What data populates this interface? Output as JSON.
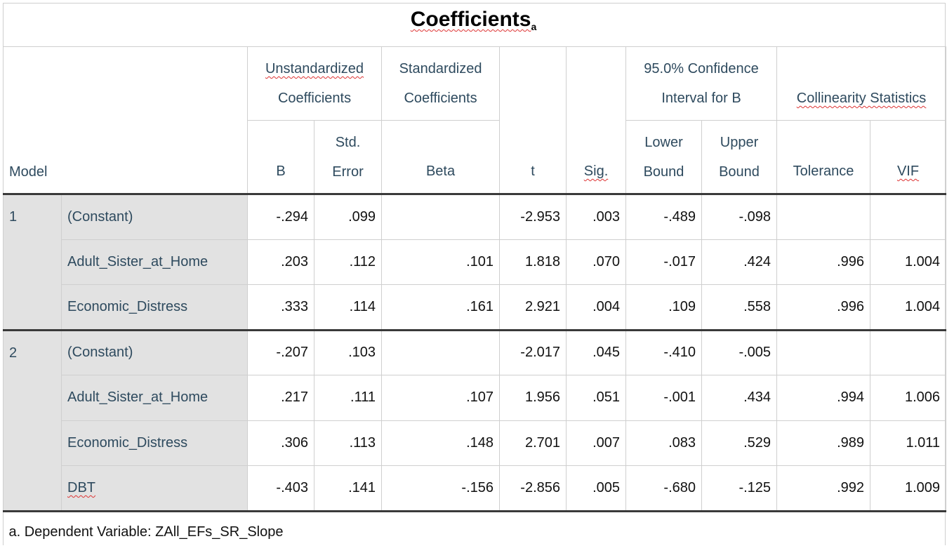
{
  "title": "Coefficients",
  "title_sup": "a",
  "headers": {
    "model": "Model",
    "unstd": "Unstandardized",
    "unstd2": "Coefficients",
    "std": "Standardized",
    "std2": "Coefficients",
    "t": "t",
    "sig": "Sig.",
    "ci": "95.0% Confidence",
    "ci2": "Interval for B",
    "coll": "Collinearity Statistics",
    "b": "B",
    "se1": "Std.",
    "se2": "Error",
    "beta": "Beta",
    "lb1": "Lower",
    "lb2": "Bound",
    "ub1": "Upper",
    "ub2": "Bound",
    "tol": "Tolerance",
    "vif": "VIF"
  },
  "models": [
    {
      "id": "1",
      "rows": [
        {
          "label": "(Constant)",
          "b": "-.294",
          "se": ".099",
          "beta": "",
          "t": "-2.953",
          "sig": ".003",
          "lb": "-.489",
          "ub": "-.098",
          "tol": "",
          "vif": ""
        },
        {
          "label": "Adult_Sister_at_Home",
          "b": ".203",
          "se": ".112",
          "beta": ".101",
          "t": "1.818",
          "sig": ".070",
          "lb": "-.017",
          "ub": ".424",
          "tol": ".996",
          "vif": "1.004"
        },
        {
          "label": "Economic_Distress",
          "b": ".333",
          "se": ".114",
          "beta": ".161",
          "t": "2.921",
          "sig": ".004",
          "lb": ".109",
          "ub": ".558",
          "tol": ".996",
          "vif": "1.004"
        }
      ]
    },
    {
      "id": "2",
      "rows": [
        {
          "label": "(Constant)",
          "b": "-.207",
          "se": ".103",
          "beta": "",
          "t": "-2.017",
          "sig": ".045",
          "lb": "-.410",
          "ub": "-.005",
          "tol": "",
          "vif": ""
        },
        {
          "label": "Adult_Sister_at_Home",
          "b": ".217",
          "se": ".111",
          "beta": ".107",
          "t": "1.956",
          "sig": ".051",
          "lb": "-.001",
          "ub": ".434",
          "tol": ".994",
          "vif": "1.006"
        },
        {
          "label": "Economic_Distress",
          "b": ".306",
          "se": ".113",
          "beta": ".148",
          "t": "2.701",
          "sig": ".007",
          "lb": ".083",
          "ub": ".529",
          "tol": ".989",
          "vif": "1.011"
        },
        {
          "label": "DBT",
          "b": "-.403",
          "se": ".141",
          "beta": "-.156",
          "t": "-2.856",
          "sig": ".005",
          "lb": "-.680",
          "ub": "-.125",
          "tol": ".992",
          "vif": "1.009"
        }
      ]
    }
  ],
  "footnote": "a. Dependent Variable: ZAll_EFs_SR_Slope"
}
